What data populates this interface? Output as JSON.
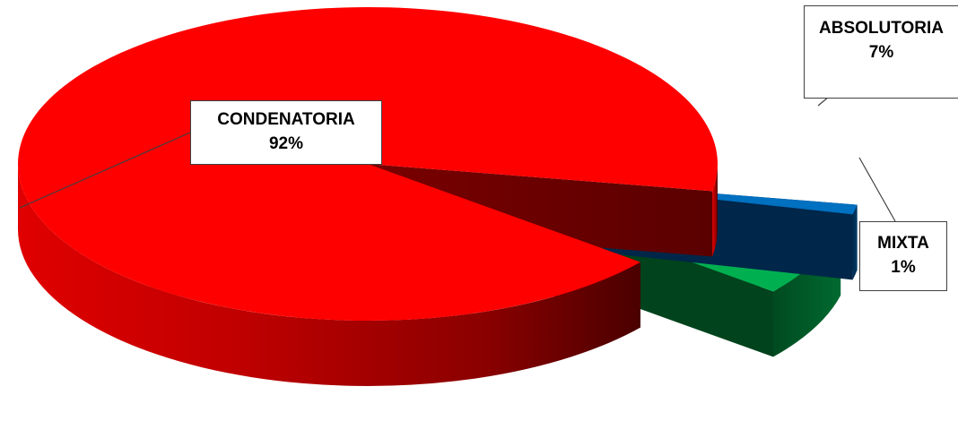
{
  "chart_data": {
    "type": "pie",
    "style": "3d-exploded",
    "categories": [
      "CONDENATORIA",
      "ABSOLUTORIA",
      "MIXTA"
    ],
    "values": [
      92,
      7,
      1
    ],
    "colors": [
      "#ff0000",
      "#00b050",
      "#0070c0"
    ],
    "legend": "none",
    "data_labels": [
      {
        "category": "CONDENATORIA",
        "percent": "92%"
      },
      {
        "category": "ABSOLUTORIA",
        "percent": "7%"
      },
      {
        "category": "MIXTA",
        "percent": "1%"
      }
    ]
  }
}
